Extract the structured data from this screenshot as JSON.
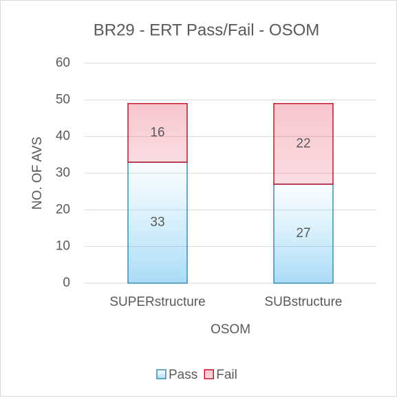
{
  "chart_data": {
    "type": "stacked_bar",
    "title": "BR29 - ERT Pass/Fail - OSOM",
    "x_label": "OSOM",
    "y_label": "NO. OF AVS",
    "categories": [
      "SUPERstructure",
      "SUBstructure"
    ],
    "series": [
      {
        "name": "Pass",
        "color": "#3b8db0",
        "values": [
          33,
          27
        ]
      },
      {
        "name": "Fail",
        "color": "#c0142c",
        "values": [
          16,
          22
        ]
      }
    ],
    "ylim": [
      0,
      60
    ],
    "yticks": [
      0,
      10,
      20,
      30,
      40,
      50,
      60
    ],
    "grid": true,
    "legend": "bottom"
  }
}
